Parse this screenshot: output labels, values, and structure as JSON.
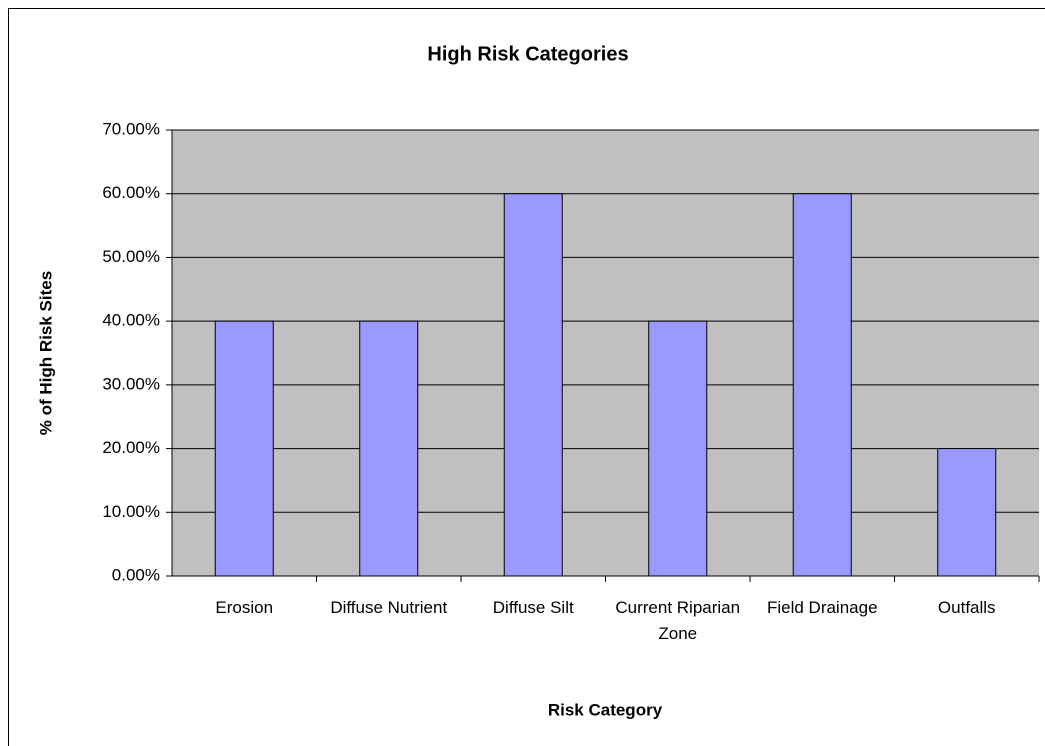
{
  "chart_data": {
    "type": "bar",
    "title": "High Risk Categories",
    "x_label": "Risk Category",
    "y_label": "% of High Risk Sites",
    "categories": [
      "Erosion",
      "Diffuse Nutrient",
      "Diffuse Silt",
      "Current Riparian Zone",
      "Field Drainage",
      "Outfalls"
    ],
    "values": [
      40,
      40,
      60,
      40,
      60,
      20
    ],
    "color": "#9999ff",
    "ylim": [
      0,
      70
    ],
    "yticks": [
      {
        "value": 0,
        "label": "0.00%"
      },
      {
        "value": 10,
        "label": "10.00%"
      },
      {
        "value": 20,
        "label": "20.00%"
      },
      {
        "value": 30,
        "label": "30.00%"
      },
      {
        "value": 40,
        "label": "40.00%"
      },
      {
        "value": 50,
        "label": "50.00%"
      },
      {
        "value": 60,
        "label": "60.00%"
      },
      {
        "value": 70,
        "label": "70.00%"
      }
    ],
    "grid": true
  }
}
